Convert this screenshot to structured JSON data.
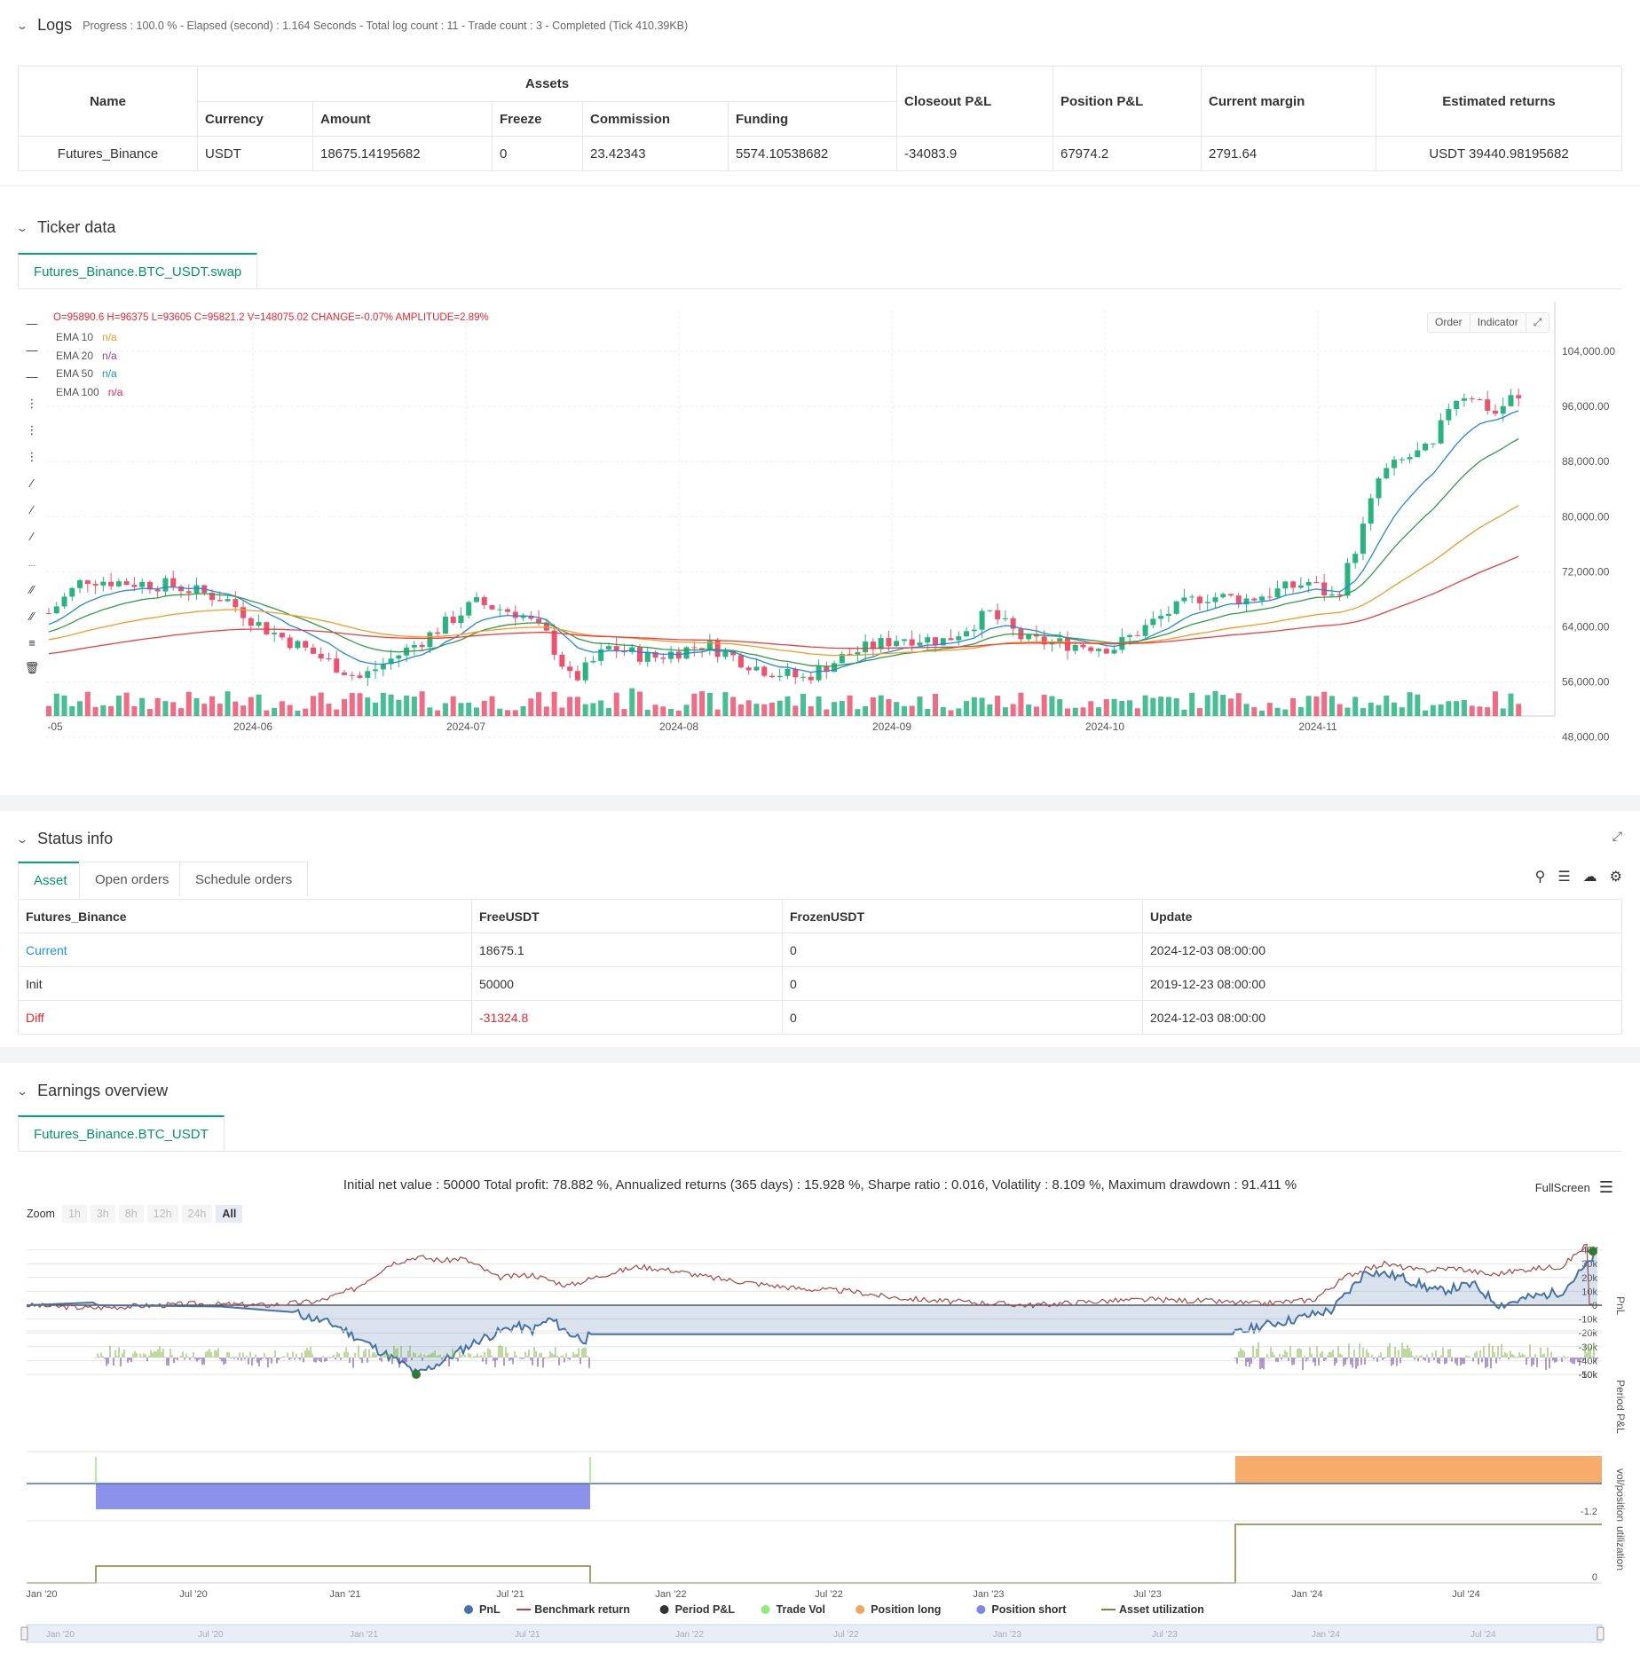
{
  "logs": {
    "title": "Logs",
    "summary": "Progress : 100.0 % - Elapsed (second) : 1.164  Seconds - Total log count : 11 - Trade count : 3 - Completed (Tick 410.39KB)",
    "table": {
      "h_name": "Name",
      "h_assets": "Assets",
      "h_closeout": "Closeout P&L",
      "h_position": "Position P&L",
      "h_margin": "Current margin",
      "h_returns": "Estimated returns",
      "h_currency": "Currency",
      "h_amount": "Amount",
      "h_freeze": "Freeze",
      "h_commission": "Commission",
      "h_funding": "Funding",
      "row": {
        "name": "Futures_Binance",
        "currency": "USDT",
        "amount": "18675.14195682",
        "freeze": "0",
        "commission": "23.42343",
        "funding": "5574.10538682",
        "closeout": "-34083.9",
        "position": "67974.2",
        "margin": "2791.64",
        "returns": "USDT 39440.98195682"
      }
    }
  },
  "ticker": {
    "title": "Ticker data",
    "tab": "Futures_Binance.BTC_USDT.swap",
    "ohlc": "O=95890.6 H=96375 L=93605 C=95821.2 V=148075.02 CHANGE=-0.07% AMPLITUDE=2.89%",
    "legend": [
      {
        "label": "EMA 10",
        "value": "n/a",
        "color": "#f59a23"
      },
      {
        "label": "EMA 20",
        "value": "n/a",
        "color": "#8e44ad"
      },
      {
        "label": "EMA 50",
        "value": "n/a",
        "color": "#1e88e5"
      },
      {
        "label": "EMA 100",
        "value": "n/a",
        "color": "#e91e63"
      }
    ],
    "buttons": {
      "order": "Order",
      "indicator": "Indicator"
    },
    "y_ticks": [
      "104,000.00",
      "96,000.00",
      "88,000.00",
      "80,000.00",
      "72,000.00",
      "64,000.00",
      "56,000.00",
      "48,000.00"
    ],
    "x_ticks": [
      "-05",
      "2024-06",
      "2024-07",
      "2024-08",
      "2024-09",
      "2024-10",
      "2024-11"
    ],
    "colors": {
      "up": "#26b47f",
      "down": "#f0506e",
      "ema_fast": "#1e88e5",
      "ema_mid": "#2e9e44",
      "ema_slow": "#f59a23",
      "ema_long": "#f03c3c"
    }
  },
  "status": {
    "title": "Status info",
    "tabs": [
      "Asset",
      "Open orders",
      "Schedule orders"
    ],
    "headers": [
      "Futures_Binance",
      "FreeUSDT",
      "FrozenUSDT",
      "Update"
    ],
    "rows": [
      [
        "Current",
        "18675.1",
        "0",
        "2024-12-03 08:00:00"
      ],
      [
        "Init",
        "50000",
        "0",
        "2019-12-23 08:00:00"
      ],
      [
        "Diff",
        "-31324.8",
        "0",
        "2024-12-03 08:00:00"
      ]
    ]
  },
  "earnings": {
    "title": "Earnings overview",
    "tab": "Futures_Binance.BTC_USDT",
    "summary": "Initial net value : 50000 Total profit: 78.882 %, Annualized returns (365 days) : 15.928 %, Sharpe ratio : 0.016, Volatility : 8.109 %, Maximum drawdown : 91.411 %",
    "fullscreen": "FullScreen",
    "zoom_label": "Zoom",
    "zoom_options": [
      "1h",
      "3h",
      "8h",
      "12h",
      "24h",
      "All"
    ],
    "pnl_ticks": [
      "40k",
      "30k",
      "20k",
      "10k",
      "0",
      "-10k",
      "-20k",
      "-30k",
      "-40k",
      "-50k"
    ],
    "pnl_axis": "PnL",
    "period_axis": "Period P&L",
    "period_tick": "-10k",
    "vol_axis": "vol/position",
    "vol_tick": "-1.2",
    "util_axis": "utilization",
    "util_tick": "0",
    "x_ticks": [
      "Jan '20",
      "Jul '20",
      "Jan '21",
      "Jul '21",
      "Jan '22",
      "Jul '22",
      "Jan '23",
      "Jul '23",
      "Jan '24",
      "Jul '24"
    ],
    "legend": [
      {
        "label": "PnL",
        "color": "#4572a7"
      },
      {
        "label": "Benchmark return",
        "color": "#aa4643"
      },
      {
        "label": "Period P&L",
        "color": "#333333"
      },
      {
        "label": "Trade Vol",
        "color": "#90ed7d"
      },
      {
        "label": "Position long",
        "color": "#f7a35c"
      },
      {
        "label": "Position short",
        "color": "#8085e9"
      },
      {
        "label": "Asset utilization",
        "color": "#8d7d3a"
      }
    ]
  }
}
